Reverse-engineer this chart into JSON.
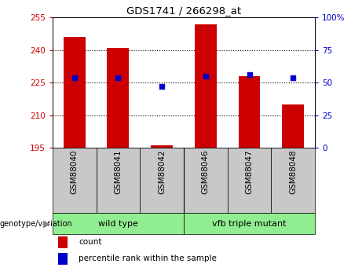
{
  "title": "GDS1741 / 266298_at",
  "categories": [
    "GSM88040",
    "GSM88041",
    "GSM88042",
    "GSM88046",
    "GSM88047",
    "GSM88048"
  ],
  "count_values": [
    246,
    241,
    196,
    252,
    228,
    215
  ],
  "percentile_values": [
    54,
    54,
    47,
    55,
    56,
    54
  ],
  "ylim_left": [
    195,
    255
  ],
  "ylim_right": [
    0,
    100
  ],
  "yticks_left": [
    195,
    210,
    225,
    240,
    255
  ],
  "yticks_right": [
    0,
    25,
    50,
    75,
    100
  ],
  "ytick_labels_right": [
    "0",
    "25",
    "50",
    "75",
    "100%"
  ],
  "bar_color": "#cc0000",
  "point_color": "#0000cc",
  "bar_bottom": 195,
  "group1_label": "wild type",
  "group2_label": "vfb triple mutant",
  "geno_label": "genotype/variation",
  "legend_count_label": "count",
  "legend_pct_label": "percentile rank within the sample",
  "bar_width": 0.5,
  "left_tick_color": "#cc0000",
  "right_tick_color": "#0000cc",
  "group1_bg": "#90ee90",
  "group2_bg": "#90ee90",
  "bg_gray": "#c8c8c8",
  "separator_color": "#000000"
}
